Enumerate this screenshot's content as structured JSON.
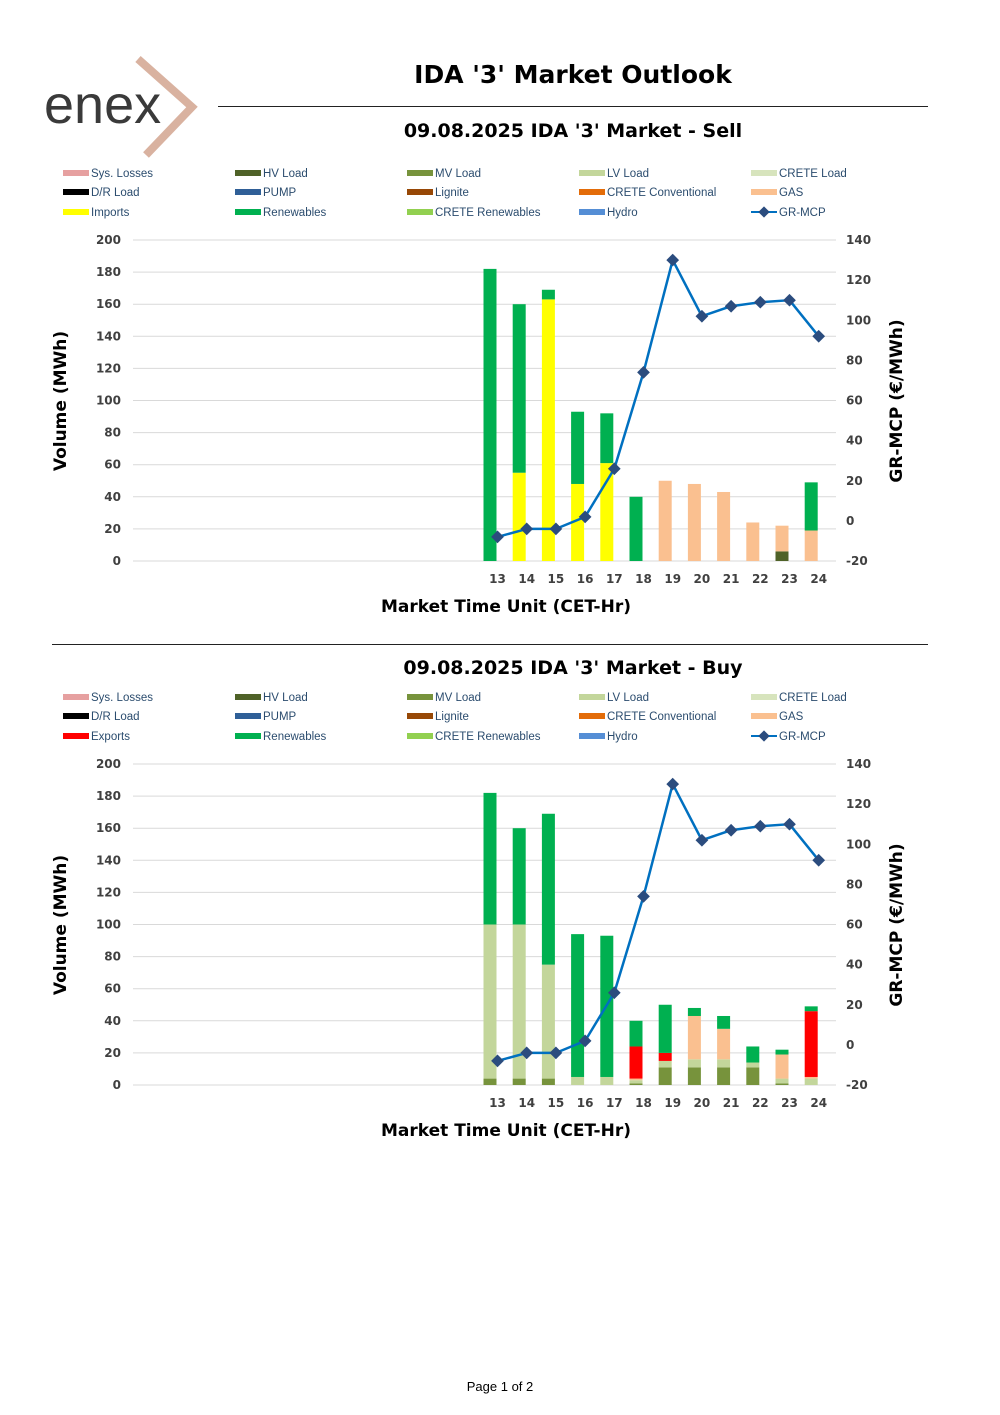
{
  "header": {
    "logo_text": "enex",
    "title": "IDA '3' Market Outlook",
    "colors": {
      "logo_text": "#3a3a3a",
      "logo_mark": "#d9b2a0"
    }
  },
  "footer": {
    "page_label": "Page 1 of 2"
  },
  "chart_data": [
    {
      "type": "bar",
      "stacked": true,
      "title": "09.08.2025  IDA '3' Market - Sell",
      "xlabel": "Market Time Unit (CET-Hr)",
      "ylabel": "Volume (MWh)",
      "y2label": "GR-MCP (€/MWh)",
      "ylim": [
        0,
        200
      ],
      "yticks": [
        0,
        20,
        40,
        60,
        80,
        100,
        120,
        140,
        160,
        180,
        200
      ],
      "y2lim": [
        -20,
        140
      ],
      "y2ticks": [
        -20,
        0,
        20,
        40,
        60,
        80,
        100,
        120,
        140
      ],
      "grid": true,
      "legend_position": "top",
      "categories": [
        "13",
        "14",
        "15",
        "16",
        "17",
        "18",
        "19",
        "20",
        "21",
        "22",
        "23",
        "24"
      ],
      "legend": [
        {
          "name": "Sys. Losses",
          "color": "#e6a0a0",
          "kind": "bar"
        },
        {
          "name": "HV Load",
          "color": "#4f6228",
          "kind": "bar"
        },
        {
          "name": "MV Load",
          "color": "#77933c",
          "kind": "bar"
        },
        {
          "name": "LV Load",
          "color": "#c3d69b",
          "kind": "bar"
        },
        {
          "name": "CRETE Load",
          "color": "#d7e4bd",
          "kind": "bar"
        },
        {
          "name": "D/R Load",
          "color": "#000000",
          "kind": "bar"
        },
        {
          "name": "PUMP",
          "color": "#2f5f97",
          "kind": "bar"
        },
        {
          "name": "Lignite",
          "color": "#974806",
          "kind": "bar"
        },
        {
          "name": "CRETE Conventional",
          "color": "#e36c09",
          "kind": "bar"
        },
        {
          "name": "GAS",
          "color": "#fac090",
          "kind": "bar"
        },
        {
          "name": "Imports",
          "color": "#ffff00",
          "kind": "bar"
        },
        {
          "name": "Renewables",
          "color": "#00b050",
          "kind": "bar"
        },
        {
          "name": "CRETE Renewables",
          "color": "#92d050",
          "kind": "bar"
        },
        {
          "name": "Hydro",
          "color": "#558ed5",
          "kind": "bar"
        },
        {
          "name": "GR-MCP",
          "color": "#0070c0",
          "kind": "line"
        }
      ],
      "series": [
        {
          "name": "HV Load",
          "values": [
            0,
            0,
            0,
            0,
            0,
            0,
            0,
            0,
            0,
            0,
            6,
            0
          ]
        },
        {
          "name": "GAS",
          "values": [
            0,
            0,
            0,
            0,
            0,
            0,
            50,
            48,
            43,
            24,
            16,
            19
          ]
        },
        {
          "name": "Imports",
          "values": [
            0,
            55,
            163,
            48,
            61,
            0,
            0,
            0,
            0,
            0,
            0,
            0
          ]
        },
        {
          "name": "Renewables",
          "values": [
            182,
            105,
            6,
            45,
            31,
            40,
            0,
            0,
            0,
            0,
            0,
            30
          ]
        }
      ],
      "line": {
        "name": "GR-MCP",
        "values": [
          -8,
          -4,
          -4,
          2,
          26,
          74,
          130,
          102,
          107,
          109,
          110,
          92
        ]
      }
    },
    {
      "type": "bar",
      "stacked": true,
      "title": "09.08.2025  IDA '3' Market - Buy",
      "xlabel": "Market Time Unit (CET-Hr)",
      "ylabel": "Volume (MWh)",
      "y2label": "GR-MCP (€/MWh)",
      "ylim": [
        0,
        200
      ],
      "yticks": [
        0,
        20,
        40,
        60,
        80,
        100,
        120,
        140,
        160,
        180,
        200
      ],
      "y2lim": [
        -20,
        140
      ],
      "y2ticks": [
        -20,
        0,
        20,
        40,
        60,
        80,
        100,
        120,
        140
      ],
      "grid": true,
      "legend_position": "top",
      "categories": [
        "13",
        "14",
        "15",
        "16",
        "17",
        "18",
        "19",
        "20",
        "21",
        "22",
        "23",
        "24"
      ],
      "legend": [
        {
          "name": "Sys. Losses",
          "color": "#e6a0a0",
          "kind": "bar"
        },
        {
          "name": "HV Load",
          "color": "#4f6228",
          "kind": "bar"
        },
        {
          "name": "MV Load",
          "color": "#77933c",
          "kind": "bar"
        },
        {
          "name": "LV Load",
          "color": "#c3d69b",
          "kind": "bar"
        },
        {
          "name": "CRETE Load",
          "color": "#d7e4bd",
          "kind": "bar"
        },
        {
          "name": "D/R Load",
          "color": "#000000",
          "kind": "bar"
        },
        {
          "name": "PUMP",
          "color": "#2f5f97",
          "kind": "bar"
        },
        {
          "name": "Lignite",
          "color": "#974806",
          "kind": "bar"
        },
        {
          "name": "CRETE Conventional",
          "color": "#e36c09",
          "kind": "bar"
        },
        {
          "name": "GAS",
          "color": "#fac090",
          "kind": "bar"
        },
        {
          "name": "Exports",
          "color": "#ff0000",
          "kind": "bar"
        },
        {
          "name": "Renewables",
          "color": "#00b050",
          "kind": "bar"
        },
        {
          "name": "CRETE Renewables",
          "color": "#92d050",
          "kind": "bar"
        },
        {
          "name": "Hydro",
          "color": "#558ed5",
          "kind": "bar"
        },
        {
          "name": "GR-MCP",
          "color": "#0070c0",
          "kind": "line"
        }
      ],
      "series": [
        {
          "name": "MV Load",
          "values": [
            4,
            4,
            4,
            0,
            0,
            1,
            11,
            11,
            11,
            11,
            1,
            0
          ]
        },
        {
          "name": "LV Load",
          "values": [
            96,
            96,
            71,
            5,
            5,
            2,
            4,
            5,
            5,
            3,
            3,
            4
          ]
        },
        {
          "name": "GAS",
          "values": [
            0,
            0,
            0,
            0,
            0,
            1,
            0,
            27,
            19,
            0,
            15,
            1
          ]
        },
        {
          "name": "Exports",
          "values": [
            0,
            0,
            0,
            0,
            0,
            20,
            5,
            0,
            0,
            0,
            0,
            41
          ]
        },
        {
          "name": "Renewables",
          "values": [
            82,
            60,
            94,
            89,
            88,
            16,
            30,
            5,
            8,
            10,
            3,
            3
          ]
        }
      ],
      "line": {
        "name": "GR-MCP",
        "values": [
          -8,
          -4,
          -4,
          2,
          26,
          74,
          130,
          102,
          107,
          109,
          110,
          92
        ]
      }
    }
  ]
}
